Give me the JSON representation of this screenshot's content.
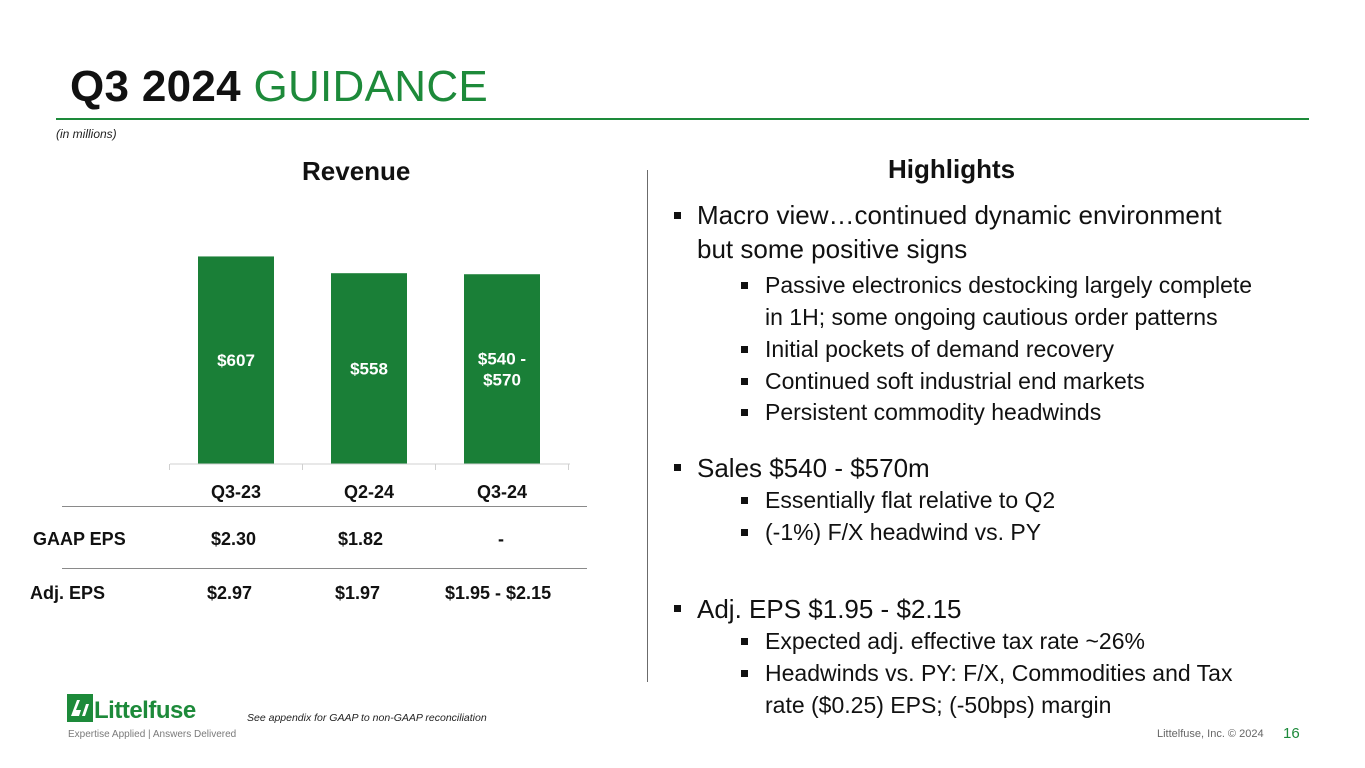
{
  "title": {
    "main": "Q3 2024",
    "accent": "GUIDANCE"
  },
  "units_note": "(in millions)",
  "revenue_heading": "Revenue",
  "chart_data": {
    "type": "bar",
    "title": "Revenue",
    "categories": [
      "Q3-23",
      "Q2-24",
      "Q3-24"
    ],
    "values": [
      607,
      558,
      555
    ],
    "data_labels": [
      [
        "$607"
      ],
      [
        "$558"
      ],
      [
        "$540 -",
        "$570"
      ]
    ],
    "ylim": [
      0,
      620
    ],
    "color": "#1a7f37"
  },
  "eps_table": {
    "rows": [
      {
        "label": "GAAP EPS",
        "values": [
          "$2.30",
          "$1.82",
          "-"
        ]
      },
      {
        "label": "Adj. EPS",
        "values": [
          "$2.97",
          "$1.97",
          "$1.95 - $2.15"
        ]
      }
    ]
  },
  "highlights": {
    "heading": "Highlights",
    "sections": [
      {
        "lines": [
          "Macro view…continued dynamic environment",
          "but some positive signs"
        ],
        "sub": [
          [
            "Passive electronics destocking largely complete",
            "in 1H; some ongoing cautious order patterns"
          ],
          [
            "Initial pockets of demand recovery"
          ],
          [
            "Continued soft industrial end markets"
          ],
          [
            "Persistent commodity headwinds"
          ]
        ]
      },
      {
        "lines": [
          "Sales $540 - $570m"
        ],
        "sub": [
          [
            "Essentially flat relative to Q2"
          ],
          [
            "(-1%) F/X headwind vs. PY"
          ]
        ]
      },
      {
        "lines": [
          "Adj. EPS $1.95 - $2.15"
        ],
        "sub": [
          [
            "Expected adj. effective tax rate ~26%"
          ],
          [
            "Headwinds vs. PY: F/X, Commodities and Tax",
            "rate ($0.25) EPS; (-50bps) margin"
          ]
        ]
      }
    ]
  },
  "footer": {
    "footnote": "See appendix for GAAP to non-GAAP reconciliation",
    "copyright": "Littelfuse, Inc. © 2024",
    "page_number": "16",
    "logo_text": "Littelfuse",
    "logo_tagline": "Expertise Applied | Answers Delivered"
  },
  "colors": {
    "accent": "#1d8a3a",
    "bar": "#1a7f37"
  }
}
